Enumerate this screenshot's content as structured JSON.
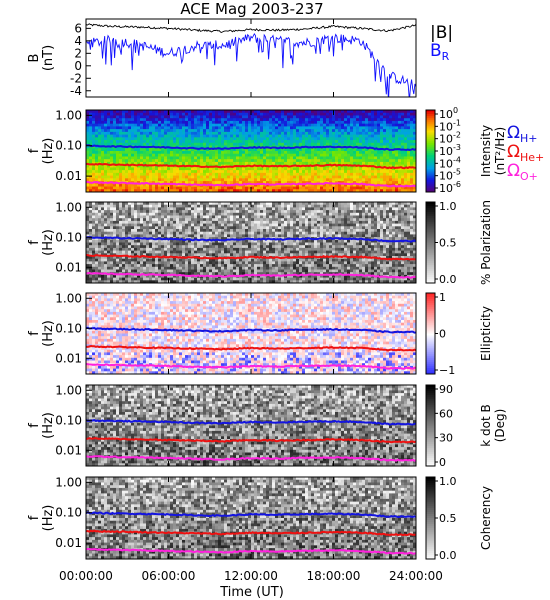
{
  "title": "ACE Mag 2003-237",
  "x_axis": {
    "tick_labels": [
      "00:00:00",
      "06:00:00",
      "12:00:00",
      "18:00:00",
      "24:00:00"
    ],
    "label": "Time (UT)"
  },
  "legend": {
    "field_b": "|B|",
    "field_br": "B",
    "field_br_sub": "R",
    "omega": "Ω",
    "h_sub": "H+",
    "he_sub": "He+",
    "o_sub": "O+"
  },
  "colors": {
    "b_total": "#000000",
    "b_r": "#1010ff",
    "h_plus": "#1414e0",
    "he_plus": "#ee1111",
    "o_plus": "#ff22dd"
  },
  "panels": [
    {
      "ylabel": "B",
      "yunit": "(nT)",
      "colorbar": null,
      "ytick_labels": [
        "6",
        "4",
        "2",
        "0",
        "-2",
        "-4"
      ]
    },
    {
      "ylabel": "f",
      "yunit": "(Hz)",
      "colorbar_label": "Intensity",
      "colorbar_unit": "(nT²/Hz)",
      "colormap": "rainbow",
      "cb_ticks": [
        {
          "base": "10",
          "exp": "0"
        },
        {
          "base": "10",
          "exp": "-1"
        },
        {
          "base": "10",
          "exp": "-2"
        },
        {
          "base": "10",
          "exp": "-3"
        },
        {
          "base": "10",
          "exp": "-4"
        },
        {
          "base": "10",
          "exp": "-5"
        },
        {
          "base": "10",
          "exp": "-6"
        }
      ],
      "ytick_labels": [
        "1.00",
        "0.10",
        "0.01"
      ]
    },
    {
      "ylabel": "f",
      "yunit": "(Hz)",
      "colorbar_label": "% Polarization",
      "colorbar_unit": "",
      "colormap": "gray",
      "cb_ticks": [
        {
          "base": "1.0",
          "exp": ""
        },
        {
          "base": "0.5",
          "exp": ""
        },
        {
          "base": "0.0",
          "exp": ""
        }
      ],
      "ytick_labels": [
        "1.00",
        "0.10",
        "0.01"
      ]
    },
    {
      "ylabel": "f",
      "yunit": "(Hz)",
      "colorbar_label": "Ellipticity",
      "colorbar_unit": "",
      "colormap": "bwr",
      "cb_ticks": [
        {
          "base": "1",
          "exp": ""
        },
        {
          "base": "0",
          "exp": ""
        },
        {
          "base": "−1",
          "exp": ""
        }
      ],
      "ytick_labels": [
        "1.00",
        "0.10",
        "0.01"
      ]
    },
    {
      "ylabel": "f",
      "yunit": "(Hz)",
      "colorbar_label": "k dot B",
      "colorbar_unit": "(Deg)",
      "colormap": "gray",
      "cb_ticks": [
        {
          "base": "90",
          "exp": ""
        },
        {
          "base": "60",
          "exp": ""
        },
        {
          "base": "30",
          "exp": ""
        },
        {
          "base": "0",
          "exp": ""
        }
      ],
      "ytick_labels": [
        "1.00",
        "0.10",
        "0.01"
      ]
    },
    {
      "ylabel": "f",
      "yunit": "(Hz)",
      "colorbar_label": "Coherency",
      "colorbar_unit": "",
      "colormap": "gray",
      "cb_ticks": [
        {
          "base": "1.0",
          "exp": ""
        },
        {
          "base": "0.5",
          "exp": ""
        },
        {
          "base": "0.0",
          "exp": ""
        }
      ],
      "ytick_labels": [
        "1.00",
        "0.10",
        "0.01"
      ]
    }
  ],
  "chart_data": {
    "type": "line",
    "title": "ACE Mag 2003-237",
    "x_hours": [
      0,
      2,
      4,
      6,
      8,
      10,
      12,
      14,
      16,
      18,
      20,
      22,
      24
    ],
    "xlim": [
      0,
      24
    ],
    "field": {
      "ylim": [
        -5,
        7.5
      ],
      "series": [
        {
          "name": "|B|",
          "values": [
            6.6,
            6.3,
            6.2,
            6.0,
            5.7,
            5.5,
            5.8,
            5.7,
            5.9,
            6.3,
            6.0,
            5.6,
            6.5
          ]
        },
        {
          "name": "B_R",
          "values": [
            3.5,
            4.2,
            3.3,
            2.0,
            3.2,
            3.3,
            4.5,
            4.0,
            3.7,
            4.5,
            4.0,
            -1.5,
            -3.2
          ]
        }
      ]
    },
    "frequency_log_ylim": [
      0.003,
      1.5
    ],
    "gyrofrequencies_hz": [
      {
        "name": "Ω H+",
        "values": [
          0.1,
          0.095,
          0.092,
          0.088,
          0.082,
          0.08,
          0.088,
          0.085,
          0.09,
          0.092,
          0.088,
          0.075,
          0.075
        ]
      },
      {
        "name": "Ω He+",
        "values": [
          0.025,
          0.024,
          0.023,
          0.022,
          0.021,
          0.02,
          0.022,
          0.021,
          0.022,
          0.023,
          0.022,
          0.019,
          0.019
        ]
      },
      {
        "name": "Ω O+",
        "values": [
          0.0063,
          0.006,
          0.0058,
          0.0055,
          0.0052,
          0.005,
          0.0055,
          0.0053,
          0.0056,
          0.0058,
          0.0055,
          0.0047,
          0.0047
        ]
      }
    ]
  }
}
